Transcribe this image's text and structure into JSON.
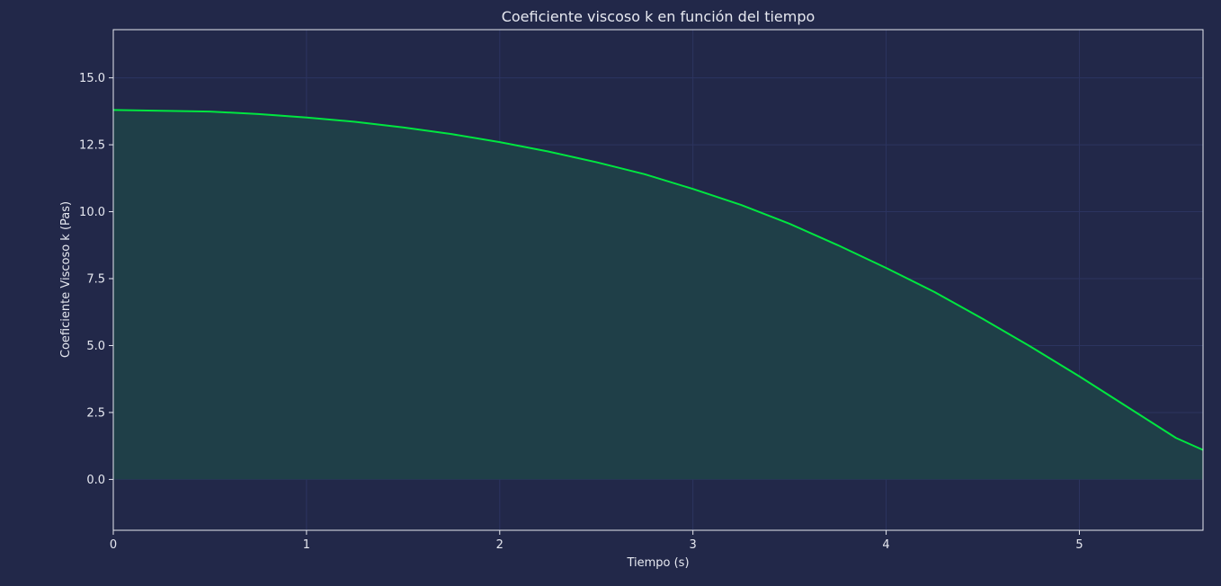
{
  "chart_data": {
    "type": "area",
    "title": "Coeficiente viscoso k en función del tiempo",
    "xlabel": "Tiempo (s)",
    "ylabel": "Coeficiente Viscoso k (Pas)",
    "xlim": [
      0,
      5.64
    ],
    "ylim": [
      -1.9,
      16.8
    ],
    "xticks": [
      0,
      1,
      2,
      3,
      4,
      5
    ],
    "xtick_labels": [
      "0",
      "1",
      "2",
      "3",
      "4",
      "5"
    ],
    "yticks": [
      0,
      2.5,
      5,
      7.5,
      10,
      12.5,
      15
    ],
    "ytick_labels": [
      "0.0",
      "2.5",
      "5.0",
      "7.5",
      "10.0",
      "12.5",
      "15.0"
    ],
    "grid": true,
    "series": [
      {
        "x": [
          0,
          0.25,
          0.5,
          0.75,
          1.0,
          1.25,
          1.5,
          1.75,
          2.0,
          2.25,
          2.5,
          2.75,
          3.0,
          3.25,
          3.5,
          3.75,
          4.0,
          4.25,
          4.5,
          4.75,
          5.0,
          5.25,
          5.5,
          5.64
        ],
        "y": [
          13.8,
          13.77,
          13.74,
          13.65,
          13.52,
          13.36,
          13.15,
          12.9,
          12.6,
          12.25,
          11.85,
          11.4,
          10.85,
          10.25,
          9.55,
          8.75,
          7.9,
          7.0,
          6.0,
          4.95,
          3.85,
          2.7,
          1.55,
          1.1
        ]
      }
    ],
    "colors": {
      "background": "#222849",
      "line": "#00e640",
      "fill": "#1f3f48",
      "grid": "#2c3460",
      "spine": "#e6e8f0",
      "text": "#e6e8f0"
    }
  }
}
